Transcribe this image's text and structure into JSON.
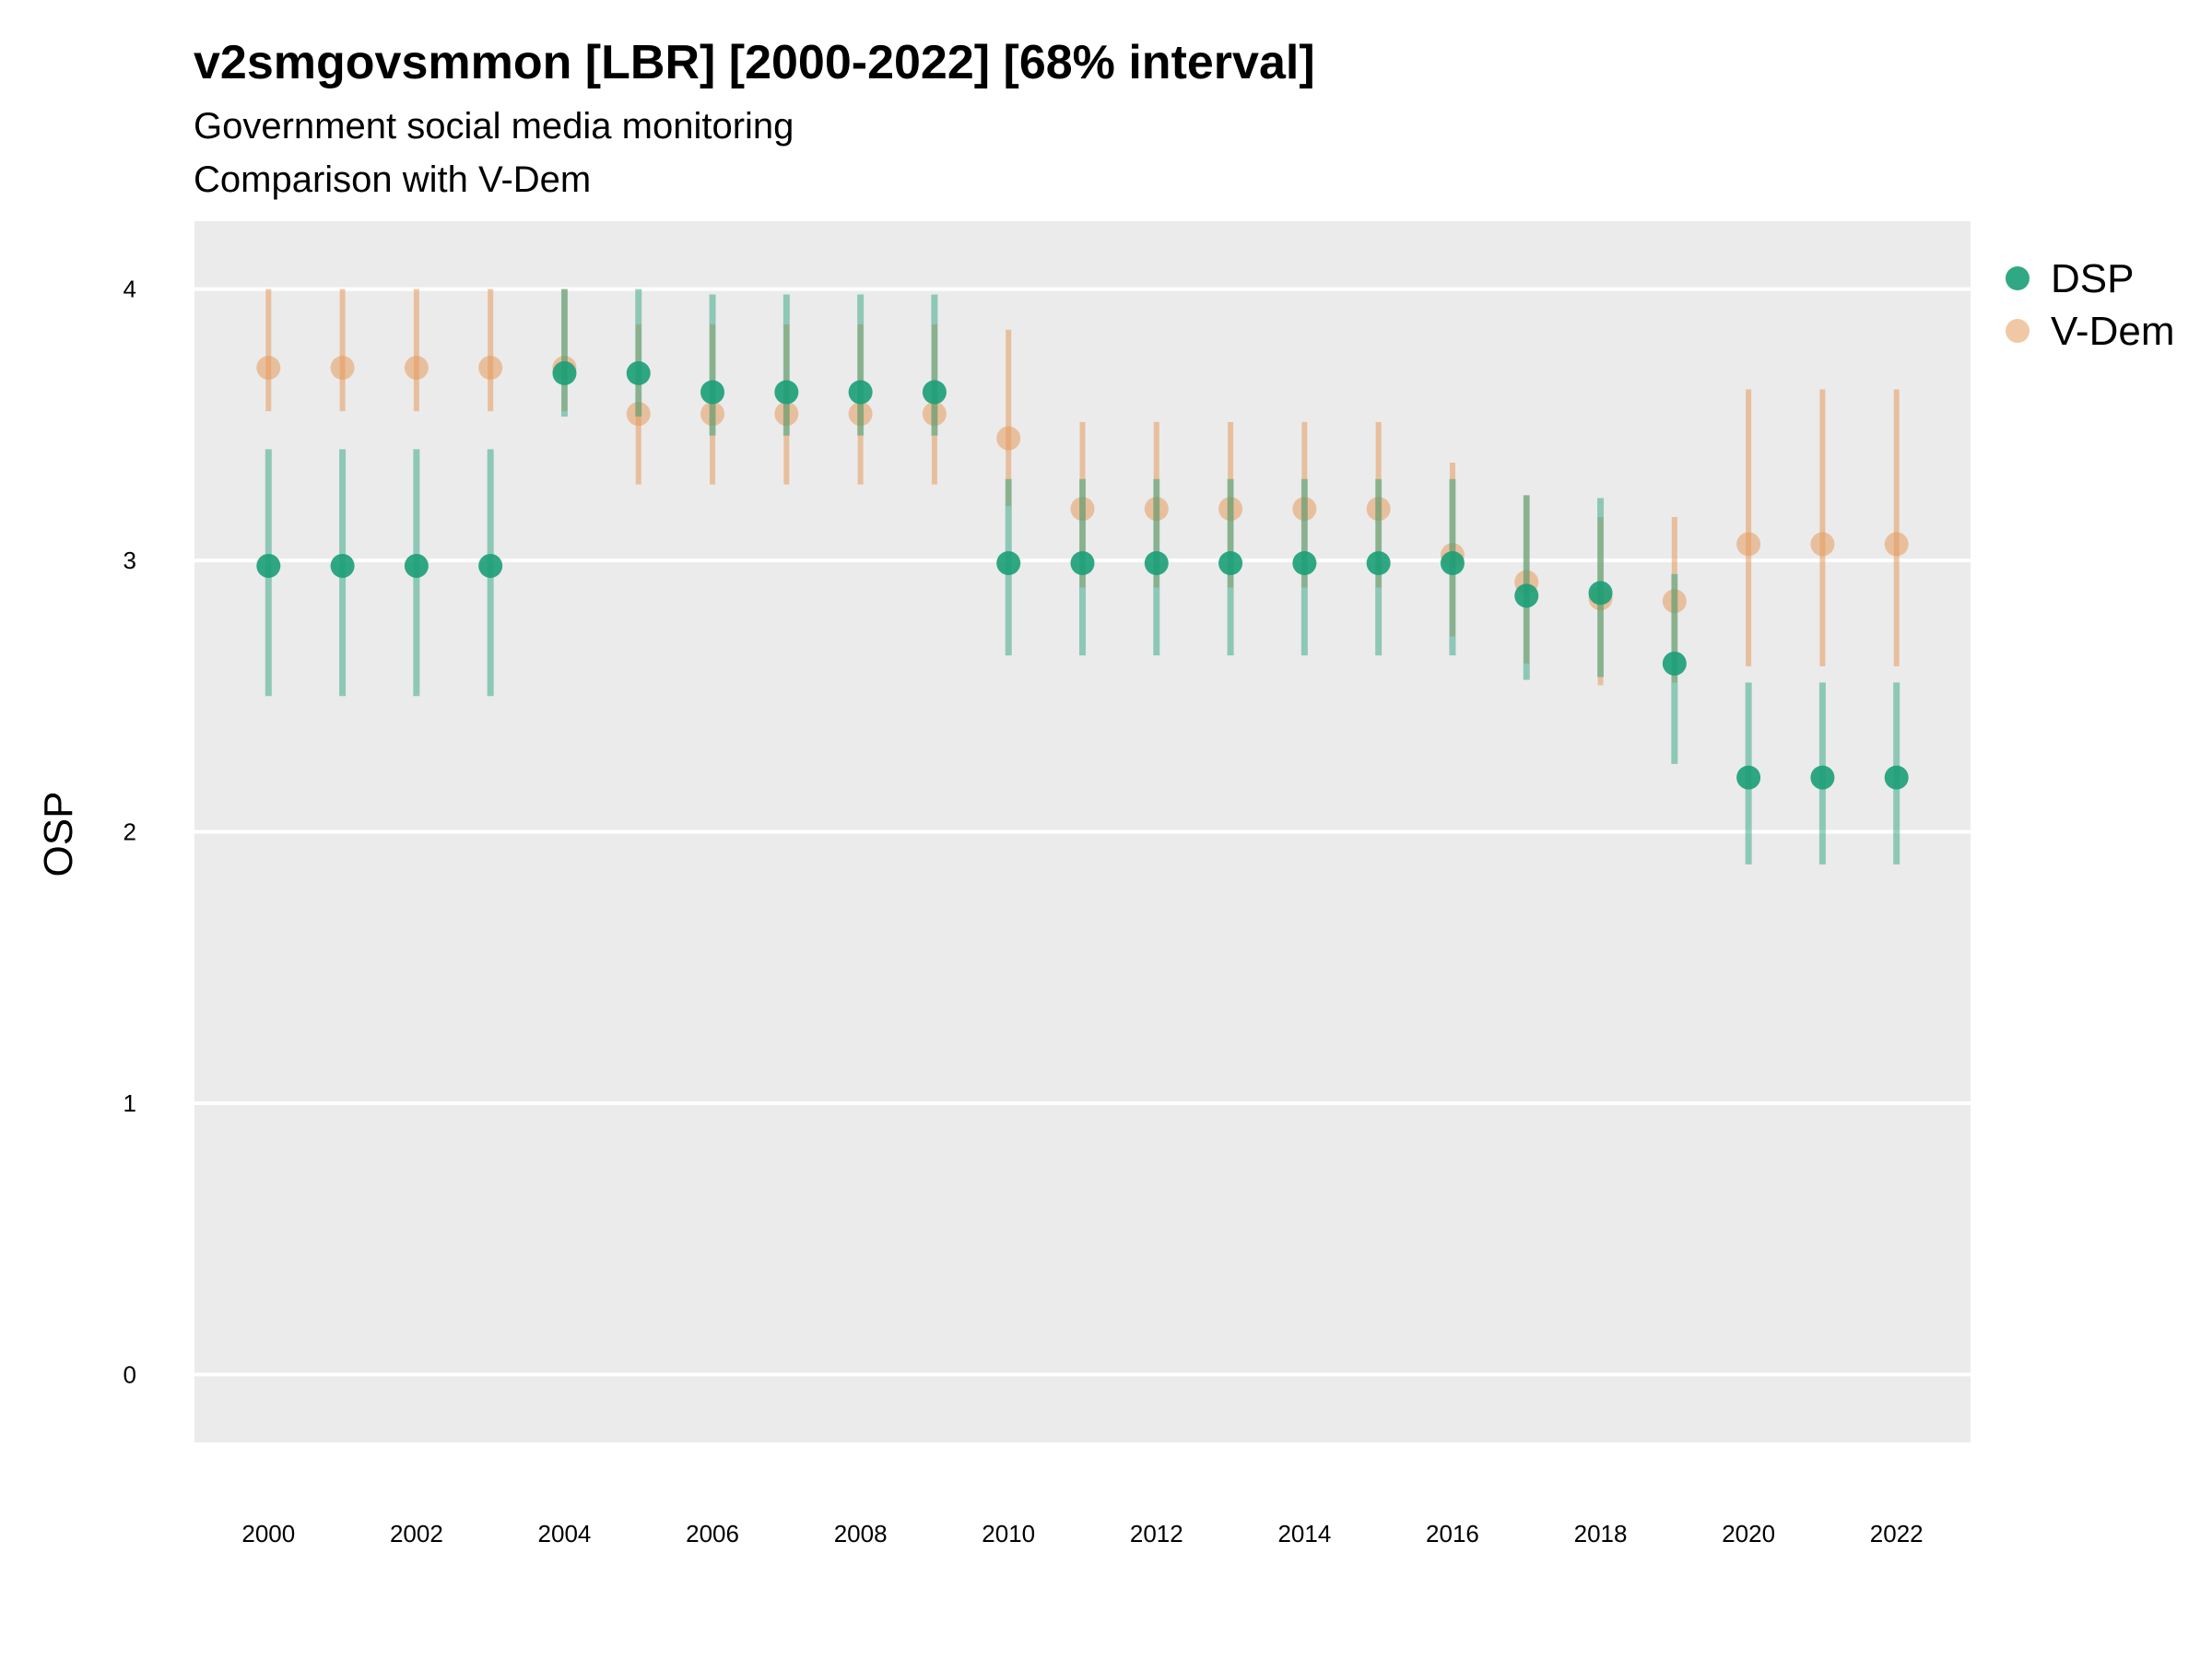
{
  "chart_data": {
    "type": "scatter",
    "title": "v2smgovsmmon [LBR] [2000-2022] [68% interval]",
    "subtitle": "Government social media monitoring",
    "subtitle2": "Comparison with V-Dem",
    "xlabel": "",
    "ylabel": "OSP",
    "xlim": [
      1999,
      2023
    ],
    "ylim": [
      -0.25,
      4.25
    ],
    "x_ticks": [
      2000,
      2002,
      2004,
      2006,
      2008,
      2010,
      2012,
      2014,
      2016,
      2018,
      2020,
      2022
    ],
    "y_ticks": [
      0,
      1,
      2,
      3,
      4
    ],
    "grid": true,
    "legend_position": "right",
    "x": [
      2000,
      2001,
      2002,
      2003,
      2004,
      2005,
      2006,
      2007,
      2008,
      2009,
      2010,
      2011,
      2012,
      2013,
      2014,
      2015,
      2016,
      2017,
      2018,
      2019,
      2020,
      2021,
      2022
    ],
    "series": [
      {
        "name": "V-Dem",
        "color": "#E69A5C",
        "values": [
          3.71,
          3.71,
          3.71,
          3.71,
          3.71,
          3.54,
          3.54,
          3.54,
          3.54,
          3.54,
          3.45,
          3.19,
          3.19,
          3.19,
          3.19,
          3.19,
          3.02,
          2.92,
          2.86,
          2.85,
          3.06,
          3.06,
          3.06
        ],
        "lower": [
          3.55,
          3.55,
          3.55,
          3.55,
          3.55,
          3.28,
          3.28,
          3.28,
          3.28,
          3.28,
          3.2,
          2.9,
          2.9,
          2.9,
          2.9,
          2.9,
          2.72,
          2.62,
          2.54,
          2.55,
          2.61,
          2.61,
          2.61
        ],
        "upper": [
          4.0,
          4.0,
          4.0,
          4.0,
          4.0,
          3.87,
          3.87,
          3.87,
          3.87,
          3.87,
          3.85,
          3.51,
          3.51,
          3.51,
          3.51,
          3.51,
          3.36,
          3.24,
          3.16,
          3.16,
          3.63,
          3.63,
          3.63
        ]
      },
      {
        "name": "DSP",
        "color": "#1B9E77",
        "values": [
          2.98,
          2.98,
          2.98,
          2.98,
          3.69,
          3.69,
          3.62,
          3.62,
          3.62,
          3.62,
          2.99,
          2.99,
          2.99,
          2.99,
          2.99,
          2.99,
          2.99,
          2.87,
          2.88,
          2.62,
          2.2,
          2.2,
          2.2
        ],
        "lower": [
          2.5,
          2.5,
          2.5,
          2.5,
          3.53,
          3.53,
          3.46,
          3.46,
          3.46,
          3.46,
          2.65,
          2.65,
          2.65,
          2.65,
          2.65,
          2.65,
          2.65,
          2.56,
          2.57,
          2.25,
          1.88,
          1.88,
          1.88
        ],
        "upper": [
          3.41,
          3.41,
          3.41,
          3.41,
          4.0,
          4.0,
          3.98,
          3.98,
          3.98,
          3.98,
          3.3,
          3.3,
          3.3,
          3.3,
          3.3,
          3.3,
          3.3,
          3.24,
          3.23,
          2.95,
          2.55,
          2.55,
          2.55
        ]
      }
    ]
  }
}
